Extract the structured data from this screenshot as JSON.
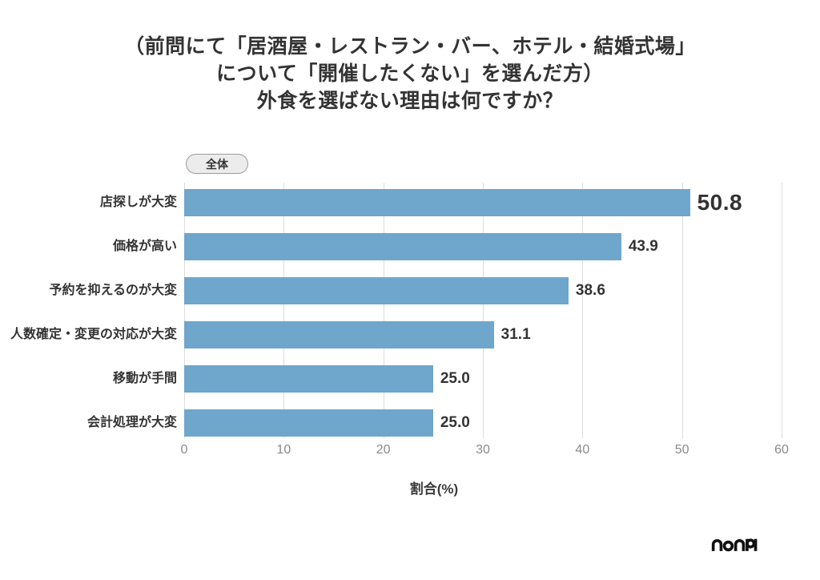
{
  "page": {
    "background": "#ffffff"
  },
  "title": {
    "line1": "（前問にて「居酒屋・レストラン・バー、ホテル・結婚式場」",
    "line2": "について「開催したくない」を選んだ方）",
    "line3": "外食を選ばない理由は何ですか？"
  },
  "badge": {
    "label": "全体"
  },
  "chart_data": {
    "type": "bar",
    "orientation": "horizontal",
    "title": "（前問にて「居酒屋・レストラン・バー、ホテル・結婚式場」について「開催したくない」を選んだ方）外食を選ばない理由は何ですか？",
    "group_label": "全体",
    "categories": [
      "店探しが大変",
      "価格が高い",
      "予約を抑えるのが大変",
      "人数確定・変更の対応が大変",
      "移動が手間",
      "会計処理が大変"
    ],
    "values": [
      50.8,
      43.9,
      38.6,
      31.1,
      25.0,
      25.0
    ],
    "value_labels": [
      "50.8",
      "43.9",
      "38.6",
      "31.1",
      "25.0",
      "25.0"
    ],
    "emphasized_value_index": 0,
    "xlabel": "割合(%)",
    "xlim": [
      0,
      60
    ],
    "xticks": [
      0,
      10,
      20,
      30,
      40,
      50,
      60
    ],
    "xtick_labels": [
      "0",
      "10",
      "20",
      "30",
      "40",
      "50",
      "60"
    ],
    "grid": true,
    "legend_position": "none",
    "bar_color": "#6FA6CB",
    "grid_color": "#DDDDDD"
  },
  "footer": {
    "logo_text": "nonpi"
  },
  "colors": {
    "bar": "#6FA6CB",
    "text": "#333333",
    "tick": "#8A8A8A",
    "grid": "#DDDDDD",
    "badge_bg": "#ECECEC",
    "badge_border": "#9B9B9B",
    "logo": "#111111"
  }
}
